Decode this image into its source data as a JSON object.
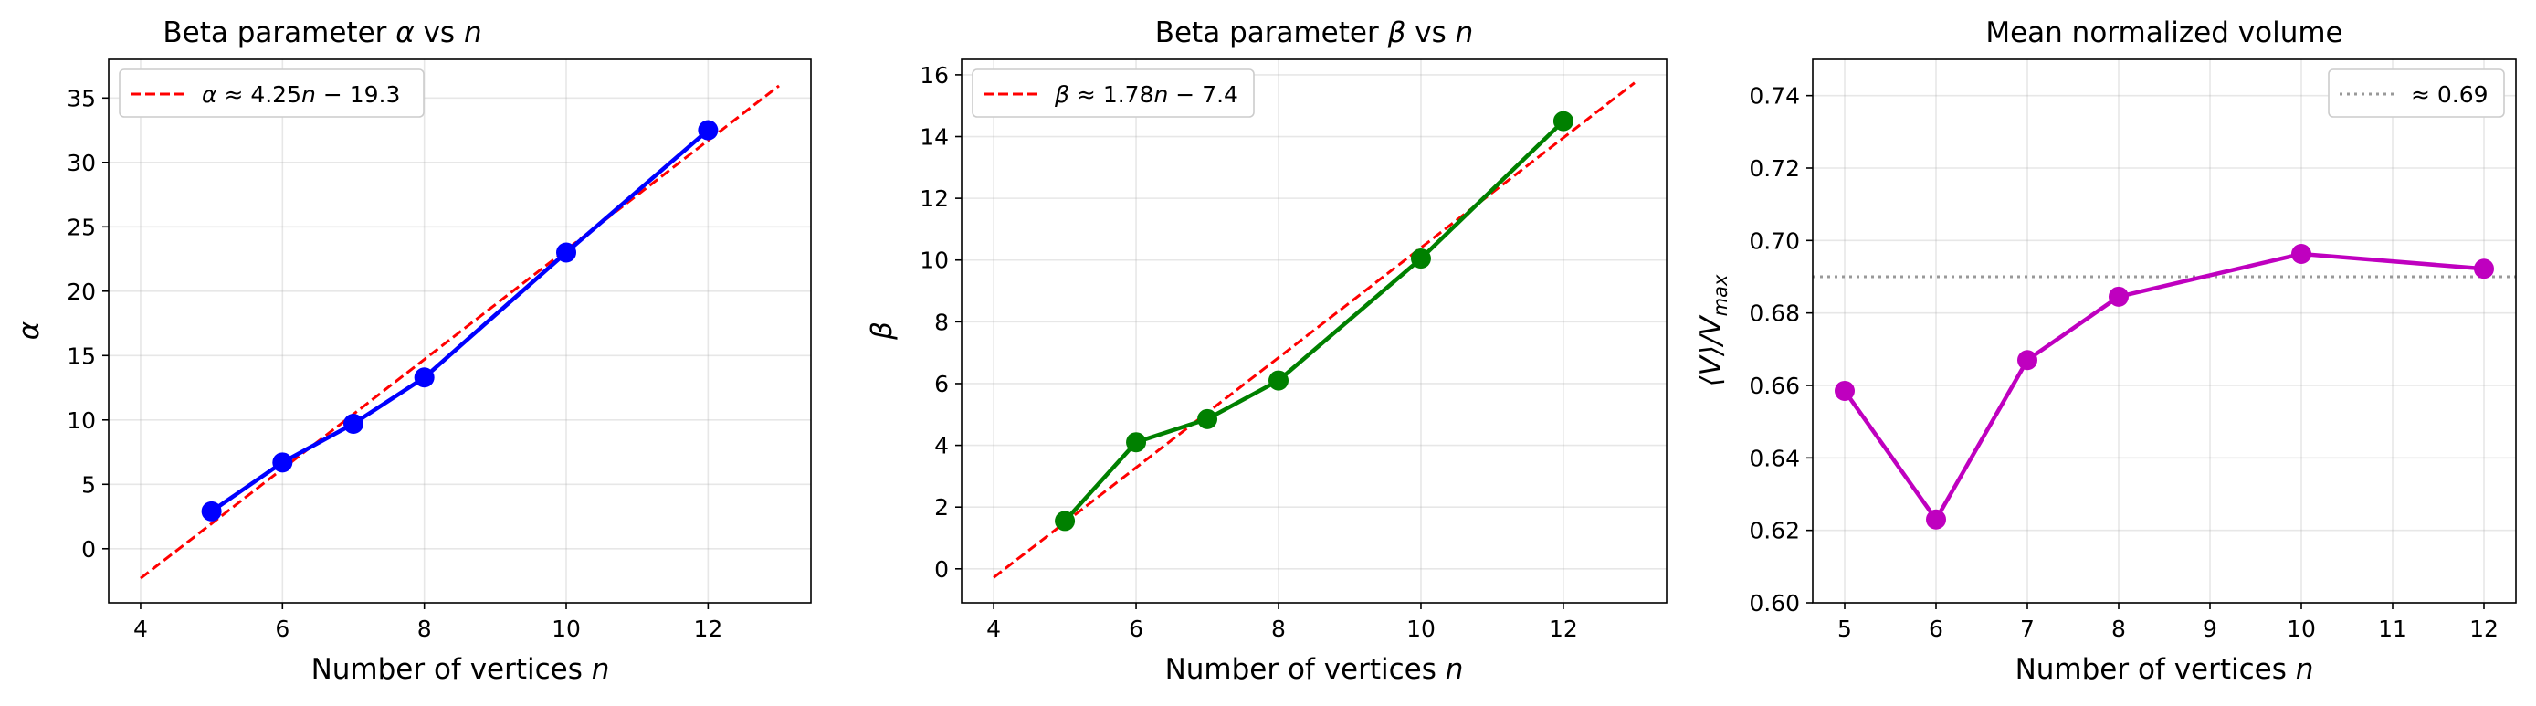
{
  "chart_data": [
    {
      "type": "line",
      "title": "Beta parameter α vs n",
      "xlabel": "Number of vertices n",
      "ylabel": "α",
      "xlim": [
        3.55,
        13.45
      ],
      "ylim": [
        -4.2,
        38.0
      ],
      "xticks": [
        4,
        6,
        8,
        10,
        12
      ],
      "yticks": [
        0,
        5,
        10,
        15,
        20,
        25,
        30,
        35
      ],
      "grid": true,
      "legend": {
        "placement": "top-left",
        "entries": [
          "α ≈ 4.25n − 19.3"
        ]
      },
      "series": [
        {
          "values": [
            [
              5,
              2.9
            ],
            [
              6,
              6.7
            ],
            [
              7,
              9.7
            ],
            [
              8,
              13.3
            ],
            [
              10,
              23.0
            ],
            [
              12,
              32.5
            ]
          ],
          "color": "#0000ff",
          "marker": "circle"
        },
        {
          "name": "α ≈ 4.25n − 19.3",
          "values": [
            [
              4,
              -2.3
            ],
            [
              13,
              35.95
            ]
          ],
          "color": "#ff0000",
          "style": "dashed"
        }
      ]
    },
    {
      "type": "line",
      "title": "Beta parameter β vs n",
      "xlabel": "Number of vertices n",
      "ylabel": "β",
      "xlim": [
        3.55,
        13.45
      ],
      "ylim": [
        -1.1,
        16.5
      ],
      "xticks": [
        4,
        6,
        8,
        10,
        12
      ],
      "yticks": [
        0,
        2,
        4,
        6,
        8,
        10,
        12,
        14,
        16
      ],
      "grid": true,
      "legend": {
        "placement": "top-left",
        "entries": [
          "β ≈ 1.78n − 7.4"
        ]
      },
      "series": [
        {
          "values": [
            [
              5,
              1.55
            ],
            [
              6,
              4.1
            ],
            [
              7,
              4.85
            ],
            [
              8,
              6.1
            ],
            [
              10,
              10.05
            ],
            [
              12,
              14.5
            ]
          ],
          "color": "#008000",
          "marker": "circle"
        },
        {
          "name": "β ≈ 1.78n − 7.4",
          "values": [
            [
              4,
              -0.28
            ],
            [
              13,
              15.74
            ]
          ],
          "color": "#ff0000",
          "style": "dashed"
        }
      ]
    },
    {
      "type": "line",
      "title": "Mean normalized volume",
      "xlabel": "Number of vertices n",
      "ylabel": "⟨V⟩/V_max",
      "xlim": [
        4.65,
        12.35
      ],
      "ylim": [
        0.6,
        0.75
      ],
      "xticks": [
        5,
        6,
        7,
        8,
        9,
        10,
        11,
        12
      ],
      "yticks": [
        0.6,
        0.62,
        0.64,
        0.66,
        0.68,
        0.7,
        0.72,
        0.74
      ],
      "grid": true,
      "legend": {
        "placement": "top-right",
        "entries": [
          "≈ 0.69"
        ]
      },
      "series": [
        {
          "values": [
            [
              5,
              0.6585
            ],
            [
              6,
              0.623
            ],
            [
              7,
              0.667
            ],
            [
              8,
              0.6845
            ],
            [
              10,
              0.6963
            ],
            [
              12,
              0.6922
            ]
          ],
          "color": "#bf00bf",
          "marker": "circle"
        },
        {
          "name": "≈ 0.69",
          "hline": 0.69,
          "color": "#999999",
          "style": "dotted"
        }
      ]
    }
  ],
  "text": {
    "p1_title": "Beta parameter",
    "p1_title_sym": "α",
    "p1_title_vs": "vs",
    "p1_title_n": "n",
    "p1_xlabel": "Number of vertices",
    "p1_xlabel_n": "n",
    "p1_ylabel": "α",
    "p1_legend_a": "α",
    "p1_legend_b": "≈ 4.25",
    "p1_legend_n": "n",
    "p1_legend_c": "− 19.3",
    "p2_title": "Beta parameter",
    "p2_title_sym": "β",
    "p2_title_vs": "vs",
    "p2_title_n": "n",
    "p2_xlabel": "Number of vertices",
    "p2_xlabel_n": "n",
    "p2_ylabel": "β",
    "p2_legend_a": "β",
    "p2_legend_b": "≈ 1.78",
    "p2_legend_n": "n",
    "p2_legend_c": "− 7.4",
    "p3_title": "Mean normalized volume",
    "p3_xlabel": "Number of vertices",
    "p3_xlabel_n": "n",
    "p3_ylabel_a": "⟨V⟩/V",
    "p3_ylabel_sub": "max",
    "p3_legend": "≈ 0.69"
  }
}
